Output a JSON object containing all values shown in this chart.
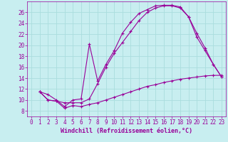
{
  "background_color": "#c8eef0",
  "grid_color": "#aadddd",
  "line_color": "#990099",
  "marker": "+",
  "xlabel": "Windchill (Refroidissement éolien,°C)",
  "xlabel_fontsize": 6,
  "tick_fontsize": 5.5,
  "xlim": [
    -0.5,
    23.5
  ],
  "ylim": [
    7,
    28
  ],
  "yticks": [
    8,
    10,
    12,
    14,
    16,
    18,
    20,
    22,
    24,
    26
  ],
  "xticks": [
    0,
    1,
    2,
    3,
    4,
    5,
    6,
    7,
    8,
    9,
    10,
    11,
    12,
    13,
    14,
    15,
    16,
    17,
    18,
    19,
    20,
    21,
    22,
    23
  ],
  "line1_x": [
    1,
    2,
    3,
    4,
    5,
    6,
    7,
    8,
    9,
    10,
    11,
    12,
    13,
    14,
    15,
    16,
    17,
    18,
    19,
    20,
    21,
    22,
    23
  ],
  "line1_y": [
    11.5,
    11.0,
    10.0,
    8.8,
    10.0,
    10.2,
    20.2,
    13.5,
    16.5,
    19.0,
    22.2,
    24.2,
    25.8,
    26.5,
    27.2,
    27.3,
    27.3,
    27.0,
    25.2,
    21.5,
    19.0,
    16.5,
    14.2
  ],
  "line2_x": [
    1,
    2,
    3,
    4,
    5,
    6,
    7,
    8,
    9,
    10,
    11,
    12,
    13,
    14,
    15,
    16,
    17,
    18,
    19,
    20,
    21,
    22,
    23
  ],
  "line2_y": [
    11.5,
    10.0,
    9.8,
    9.5,
    9.5,
    9.5,
    10.2,
    13.0,
    16.0,
    18.5,
    20.5,
    22.5,
    24.5,
    26.0,
    26.8,
    27.2,
    27.2,
    26.8,
    25.2,
    22.2,
    19.5,
    16.5,
    14.2
  ],
  "line3_x": [
    1,
    2,
    3,
    4,
    5,
    6,
    7,
    8,
    9,
    10,
    11,
    12,
    13,
    14,
    15,
    16,
    17,
    18,
    19,
    20,
    21,
    22,
    23
  ],
  "line3_y": [
    11.5,
    10.0,
    9.8,
    8.5,
    9.0,
    8.8,
    9.2,
    9.5,
    10.0,
    10.5,
    11.0,
    11.5,
    12.0,
    12.5,
    12.8,
    13.2,
    13.5,
    13.8,
    14.0,
    14.2,
    14.4,
    14.5,
    14.5
  ]
}
